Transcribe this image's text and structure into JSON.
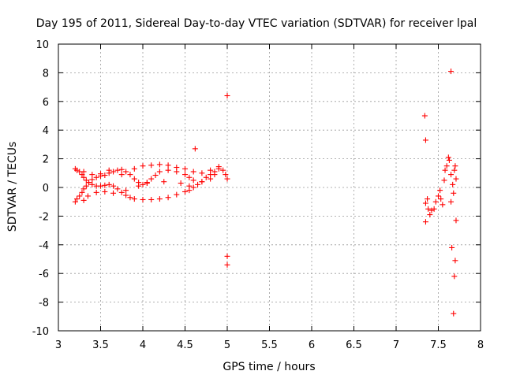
{
  "chart_data": {
    "type": "scatter",
    "title": "Day 195 of 2011, Sidereal Day-to-day VTEC variation (SDTVAR) for receiver lpal",
    "xlabel": "GPS time / hours",
    "ylabel": "SDTVAR / TECUs",
    "xlim": [
      3,
      8
    ],
    "ylim": [
      -10,
      10
    ],
    "x_ticks": [
      3,
      3.5,
      4,
      4.5,
      5,
      5.5,
      6,
      6.5,
      7,
      7.5,
      8
    ],
    "x_tick_labels": [
      "3",
      "3.5",
      "4",
      "4.5",
      "5",
      "5.5",
      "6",
      "6.5",
      "7",
      "7.5",
      "8"
    ],
    "y_ticks": [
      -10,
      -8,
      -6,
      -4,
      -2,
      0,
      2,
      4,
      6,
      8,
      10
    ],
    "y_tick_labels": [
      "-10",
      "-8",
      "-6",
      "-4",
      "-2",
      "0",
      "2",
      "4",
      "6",
      "8",
      "10"
    ],
    "grid": true,
    "marker": "+",
    "color": "#ff0000",
    "series": [
      {
        "points": [
          [
            3.2,
            1.3
          ],
          [
            3.22,
            1.2
          ],
          [
            3.25,
            1.1
          ],
          [
            3.28,
            0.9
          ],
          [
            3.3,
            0.7
          ],
          [
            3.33,
            0.5
          ],
          [
            3.36,
            0.35
          ],
          [
            3.4,
            0.2
          ],
          [
            3.45,
            0.1
          ],
          [
            3.5,
            0.1
          ],
          [
            3.55,
            0.15
          ],
          [
            3.6,
            0.2
          ],
          [
            3.65,
            0.1
          ],
          [
            3.7,
            -0.1
          ],
          [
            3.75,
            -0.35
          ],
          [
            3.8,
            -0.55
          ],
          [
            3.85,
            -0.7
          ],
          [
            3.9,
            -0.8
          ],
          [
            4.0,
            -0.85
          ],
          [
            4.1,
            -0.85
          ],
          [
            4.2,
            -0.8
          ],
          [
            4.3,
            -0.7
          ],
          [
            4.4,
            -0.5
          ],
          [
            4.5,
            -0.3
          ],
          [
            4.55,
            -0.2
          ],
          [
            4.6,
            0.0
          ],
          [
            4.65,
            0.2
          ],
          [
            4.7,
            0.4
          ],
          [
            4.75,
            0.7
          ],
          [
            4.8,
            0.9
          ],
          [
            4.85,
            1.1
          ],
          [
            4.9,
            1.3
          ],
          [
            4.95,
            1.2
          ],
          [
            4.98,
            0.9
          ],
          [
            5.0,
            0.6
          ],
          [
            3.2,
            -1.0
          ],
          [
            3.22,
            -0.8
          ],
          [
            3.25,
            -0.6
          ],
          [
            3.28,
            -0.35
          ],
          [
            3.3,
            -0.1
          ],
          [
            3.33,
            0.1
          ],
          [
            3.36,
            0.35
          ],
          [
            3.4,
            0.55
          ],
          [
            3.45,
            0.7
          ],
          [
            3.5,
            0.8
          ],
          [
            3.55,
            0.85
          ],
          [
            3.6,
            1.0
          ],
          [
            3.65,
            1.1
          ],
          [
            3.7,
            1.2
          ],
          [
            3.75,
            1.25
          ],
          [
            3.8,
            1.1
          ],
          [
            3.85,
            0.9
          ],
          [
            3.9,
            0.6
          ],
          [
            3.95,
            0.35
          ],
          [
            4.0,
            0.2
          ],
          [
            4.05,
            0.35
          ],
          [
            4.1,
            0.6
          ],
          [
            4.15,
            0.85
          ],
          [
            4.2,
            1.1
          ],
          [
            4.3,
            1.2
          ],
          [
            4.4,
            1.1
          ],
          [
            4.5,
            0.9
          ],
          [
            4.55,
            0.7
          ],
          [
            4.6,
            0.5
          ],
          [
            4.7,
            0.4
          ],
          [
            4.8,
            0.6
          ],
          [
            4.85,
            0.9
          ],
          [
            3.3,
            -0.9
          ],
          [
            3.35,
            -0.6
          ],
          [
            3.45,
            -0.35
          ],
          [
            3.55,
            -0.3
          ],
          [
            3.65,
            -0.4
          ],
          [
            3.8,
            -0.2
          ],
          [
            3.95,
            0.1
          ],
          [
            4.05,
            0.3
          ],
          [
            4.25,
            0.4
          ],
          [
            4.45,
            0.3
          ],
          [
            4.55,
            0.1
          ],
          [
            3.3,
            1.1
          ],
          [
            3.4,
            0.9
          ],
          [
            3.5,
            0.95
          ],
          [
            3.6,
            1.2
          ],
          [
            3.75,
            0.9
          ],
          [
            3.9,
            1.3
          ],
          [
            4.0,
            1.5
          ],
          [
            4.1,
            1.55
          ],
          [
            4.2,
            1.6
          ],
          [
            4.3,
            1.55
          ],
          [
            4.4,
            1.4
          ],
          [
            4.5,
            1.3
          ],
          [
            4.6,
            1.1
          ],
          [
            4.7,
            1.0
          ],
          [
            4.8,
            1.2
          ],
          [
            4.9,
            1.45
          ],
          [
            4.62,
            2.7
          ],
          [
            5.0,
            6.4
          ],
          [
            5.0,
            -4.8
          ],
          [
            5.0,
            -5.4
          ],
          [
            7.35,
            -1.1
          ],
          [
            7.37,
            -0.8
          ],
          [
            7.38,
            -1.5
          ],
          [
            7.4,
            -1.9
          ],
          [
            7.42,
            -1.6
          ],
          [
            7.45,
            -1.5
          ],
          [
            7.47,
            -1.0
          ],
          [
            7.5,
            -0.6
          ],
          [
            7.52,
            -0.2
          ],
          [
            7.53,
            -0.8
          ],
          [
            7.55,
            -1.2
          ],
          [
            7.57,
            0.5
          ],
          [
            7.58,
            1.2
          ],
          [
            7.6,
            1.5
          ],
          [
            7.62,
            2.1
          ],
          [
            7.63,
            1.9
          ],
          [
            7.65,
            0.9
          ],
          [
            7.65,
            -1.0
          ],
          [
            7.67,
            0.2
          ],
          [
            7.68,
            -0.4
          ],
          [
            7.69,
            1.2
          ],
          [
            7.7,
            1.5
          ],
          [
            7.71,
            0.6
          ],
          [
            7.35,
            -2.4
          ],
          [
            7.34,
            5.0
          ],
          [
            7.35,
            3.3
          ],
          [
            7.65,
            8.1
          ],
          [
            7.66,
            -4.2
          ],
          [
            7.7,
            -5.1
          ],
          [
            7.71,
            -2.3
          ],
          [
            7.69,
            -6.2
          ],
          [
            7.68,
            -8.8
          ]
        ]
      }
    ]
  }
}
